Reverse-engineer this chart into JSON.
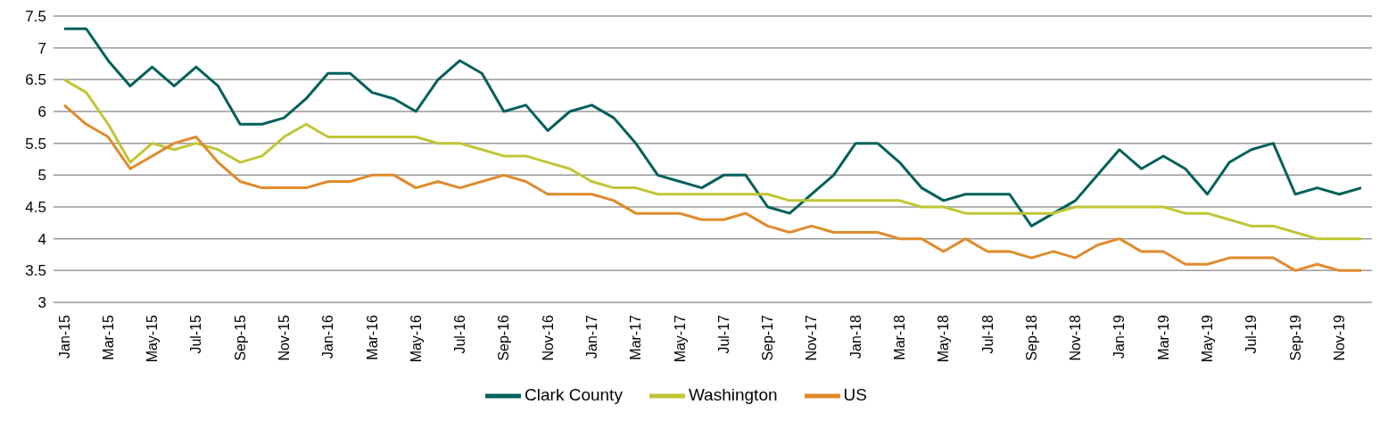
{
  "chart_data": {
    "type": "line",
    "categories": [
      "Jan-15",
      null,
      "Mar-15",
      null,
      "May-15",
      null,
      "Jul-15",
      null,
      "Sep-15",
      null,
      "Nov-15",
      null,
      "Jan-16",
      null,
      "Mar-16",
      null,
      "May-16",
      null,
      "Jul-16",
      null,
      "Sep-16",
      null,
      "Nov-16",
      null,
      "Jan-17",
      null,
      "Mar-17",
      null,
      "May-17",
      null,
      "Jul-17",
      null,
      "Sep-17",
      null,
      "Nov-17",
      null,
      "Jan-18",
      null,
      "Mar-18",
      null,
      "May-18",
      null,
      "Jul-18",
      null,
      "Sep-18",
      null,
      "Nov-18",
      null,
      "Jan-19",
      null,
      "Mar-19",
      null,
      "May-19",
      null,
      "Jul-19",
      null,
      "Sep-19",
      null,
      "Nov-19",
      null
    ],
    "series": [
      {
        "name": "Clark County",
        "color": "#00605a",
        "values": [
          7.3,
          7.3,
          6.8,
          6.4,
          6.7,
          6.4,
          6.7,
          6.4,
          5.8,
          5.8,
          5.9,
          6.2,
          6.6,
          6.6,
          6.3,
          6.2,
          6.0,
          6.5,
          6.8,
          6.6,
          6.0,
          6.1,
          5.7,
          6.0,
          6.1,
          5.9,
          5.5,
          5.0,
          4.9,
          4.8,
          5.0,
          5.0,
          4.5,
          4.4,
          4.7,
          5.0,
          5.5,
          5.5,
          5.2,
          4.8,
          4.6,
          4.7,
          4.7,
          4.7,
          4.2,
          4.4,
          4.6,
          5.0,
          5.4,
          5.1,
          5.3,
          5.1,
          4.7,
          5.2,
          5.4,
          5.5,
          4.7,
          4.8,
          4.7,
          4.8
        ]
      },
      {
        "name": "Washington",
        "color": "#c0c535",
        "values": [
          6.5,
          6.3,
          5.8,
          5.2,
          5.5,
          5.4,
          5.5,
          5.4,
          5.2,
          5.3,
          5.6,
          5.8,
          5.6,
          5.6,
          5.6,
          5.6,
          5.6,
          5.5,
          5.5,
          5.4,
          5.3,
          5.3,
          5.2,
          5.1,
          4.9,
          4.8,
          4.8,
          4.7,
          4.7,
          4.7,
          4.7,
          4.7,
          4.7,
          4.6,
          4.6,
          4.6,
          4.6,
          4.6,
          4.6,
          4.5,
          4.5,
          4.4,
          4.4,
          4.4,
          4.4,
          4.4,
          4.5,
          4.5,
          4.5,
          4.5,
          4.5,
          4.4,
          4.4,
          4.3,
          4.2,
          4.2,
          4.1,
          4.0,
          4.0,
          4.0
        ]
      },
      {
        "name": "US",
        "color": "#e08a2c",
        "values": [
          6.1,
          5.8,
          5.6,
          5.1,
          5.3,
          5.5,
          5.6,
          5.2,
          4.9,
          4.8,
          4.8,
          4.8,
          4.9,
          4.9,
          5.0,
          5.0,
          4.8,
          4.9,
          4.8,
          4.9,
          5.0,
          4.9,
          4.7,
          4.7,
          4.7,
          4.6,
          4.4,
          4.4,
          4.4,
          4.3,
          4.3,
          4.4,
          4.2,
          4.1,
          4.2,
          4.1,
          4.1,
          4.1,
          4.0,
          4.0,
          3.8,
          4.0,
          3.8,
          3.8,
          3.7,
          3.8,
          3.7,
          3.9,
          4.0,
          3.8,
          3.8,
          3.6,
          3.6,
          3.7,
          3.7,
          3.7,
          3.5,
          3.6,
          3.5,
          3.5
        ]
      }
    ],
    "ylim": [
      3,
      7.5
    ],
    "yticks": [
      3,
      3.5,
      4,
      4.5,
      5,
      5.5,
      6,
      6.5,
      7,
      7.5
    ],
    "grid": "y",
    "legend": "bottom",
    "marker": "none",
    "line_style": "solid"
  }
}
